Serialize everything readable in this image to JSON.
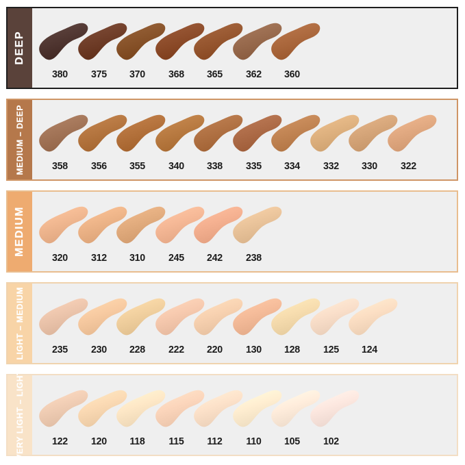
{
  "page": {
    "background": "#ffffff",
    "panel_background": "#efefef",
    "number_color": "#1c1c1c"
  },
  "rows": [
    {
      "label": "DEEP",
      "band_color": "#5a423a",
      "border_color": "#1e1e1e",
      "label_color": "#ffffff",
      "shades": [
        {
          "code": "380",
          "color": "#4f3530"
        },
        {
          "code": "375",
          "color": "#6e3c27"
        },
        {
          "code": "370",
          "color": "#875229"
        },
        {
          "code": "368",
          "color": "#8c4b29"
        },
        {
          "code": "365",
          "color": "#96562f"
        },
        {
          "code": "362",
          "color": "#97694c"
        },
        {
          "code": "360",
          "color": "#aa673c"
        }
      ]
    },
    {
      "label": "MEDIUM – DEEP",
      "band_color": "#b5784b",
      "border_color": "#cf9565",
      "label_color": "#ffffff",
      "shades": [
        {
          "code": "358",
          "color": "#a17356"
        },
        {
          "code": "356",
          "color": "#b3743e"
        },
        {
          "code": "355",
          "color": "#b2703a"
        },
        {
          "code": "340",
          "color": "#b77940"
        },
        {
          "code": "338",
          "color": "#af7042"
        },
        {
          "code": "335",
          "color": "#ac6a46"
        },
        {
          "code": "334",
          "color": "#c08352"
        },
        {
          "code": "332",
          "color": "#ddb07e"
        },
        {
          "code": "330",
          "color": "#d4a478"
        },
        {
          "code": "322",
          "color": "#dfa77f"
        }
      ]
    },
    {
      "label": "MEDIUM",
      "band_color": "#eeab70",
      "border_color": "#e9bd8e",
      "label_color": "#ffffff",
      "shades": [
        {
          "code": "320",
          "color": "#eeb58e"
        },
        {
          "code": "312",
          "color": "#ebb286"
        },
        {
          "code": "310",
          "color": "#e0aa7c"
        },
        {
          "code": "245",
          "color": "#f3b694"
        },
        {
          "code": "242",
          "color": "#f2ae8e"
        },
        {
          "code": "238",
          "color": "#e8c299"
        }
      ]
    },
    {
      "label": "LIGHT – MEDIUM",
      "band_color": "#f8d4a7",
      "border_color": "#f0d3ae",
      "label_color": "#ffffff",
      "shades": [
        {
          "code": "235",
          "color": "#eac3aa"
        },
        {
          "code": "230",
          "color": "#f5c89f"
        },
        {
          "code": "228",
          "color": "#efce9d"
        },
        {
          "code": "222",
          "color": "#f4c7ac"
        },
        {
          "code": "220",
          "color": "#f5cfae"
        },
        {
          "code": "130",
          "color": "#f2b997"
        },
        {
          "code": "128",
          "color": "#f4daac"
        },
        {
          "code": "125",
          "color": "#f7dcc7"
        },
        {
          "code": "124",
          "color": "#f9dcc1"
        }
      ]
    },
    {
      "label": "VERY LIGHT – LIGHT",
      "band_color": "#f9e3c8",
      "border_color": "#f3dec4",
      "label_color": "#ffffff",
      "shades": [
        {
          "code": "122",
          "color": "#eecbb2"
        },
        {
          "code": "120",
          "color": "#f8d7b1"
        },
        {
          "code": "118",
          "color": "#fbe5c4"
        },
        {
          "code": "115",
          "color": "#f9d3b9"
        },
        {
          "code": "112",
          "color": "#fadfc7"
        },
        {
          "code": "110",
          "color": "#fcebce"
        },
        {
          "code": "105",
          "color": "#fcead9"
        },
        {
          "code": "102",
          "color": "#fae5dd"
        }
      ]
    }
  ]
}
